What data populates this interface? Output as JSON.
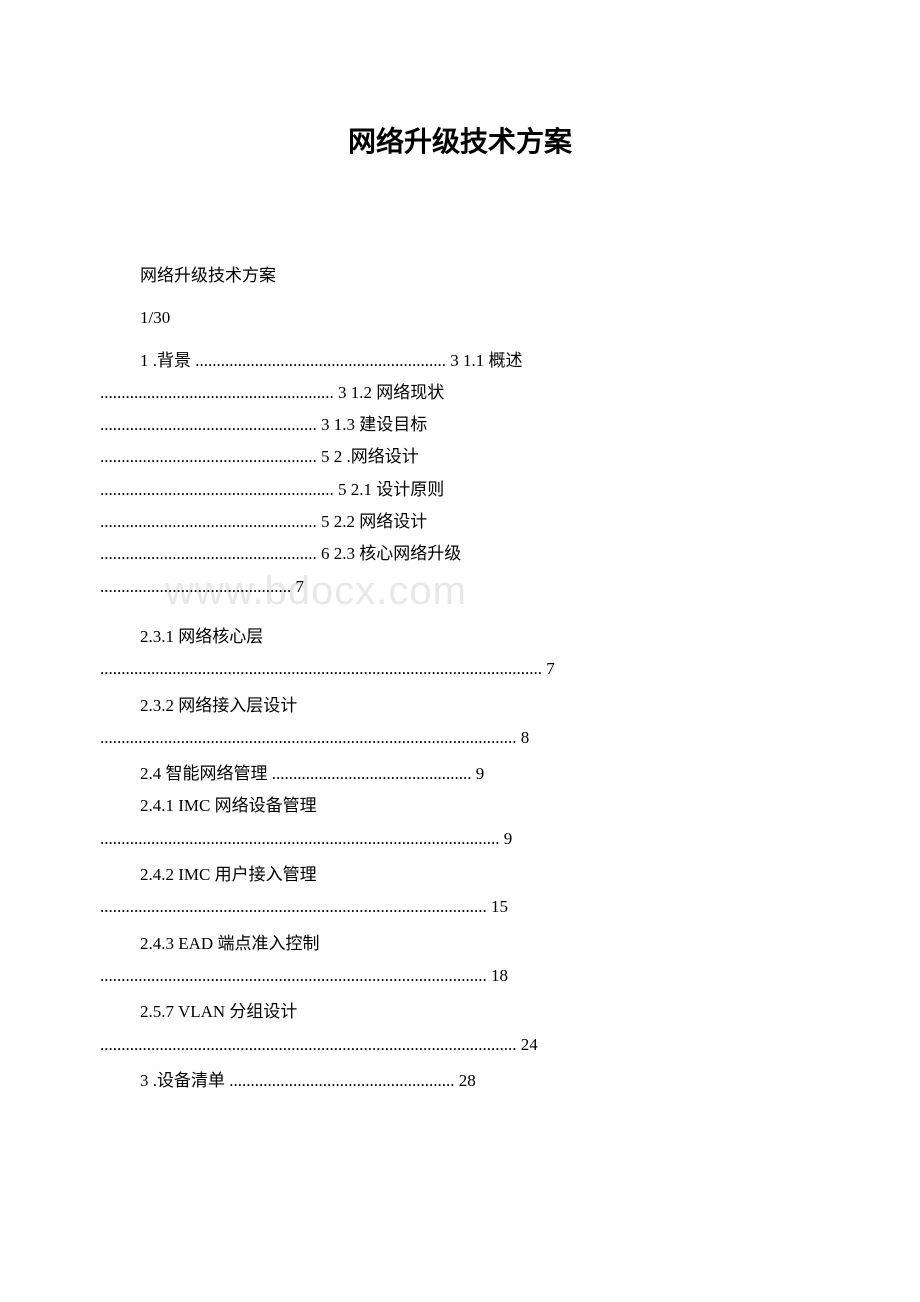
{
  "document": {
    "title": "网络升级技术方案",
    "subtitle": "网络升级技术方案",
    "page_indicator": "1/30",
    "watermark": "www.bdocx.com",
    "background_color": "#ffffff",
    "text_color": "#000000",
    "watermark_color": "#e8e8e8",
    "title_fontsize": 28,
    "body_fontsize": 17
  },
  "toc": {
    "block1": {
      "line1": "1 .背景 ........................................................... 3 1.1 概述",
      "line2": "....................................................... 3 1.2 网络现状",
      "line3": "................................................... 3 1.3 建设目标",
      "line4": "................................................... 5 2 .网络设计",
      "line5": "....................................................... 5 2.1 设计原则",
      "line6": "................................................... 5 2.2 网络设计",
      "line7": "................................................... 6 2.3 核心网络升级",
      "line8": "............................................. 7"
    },
    "entry_231_heading": "2.3.1 网络核心层",
    "entry_231_dots": "........................................................................................................ 7",
    "entry_232_heading": "2.3.2 网络接入层设计",
    "entry_232_dots": ".................................................................................................. 8",
    "entry_24": "2.4 智能网络管理 ............................................... 9",
    "entry_241_heading": "2.4.1 IMC 网络设备管理",
    "entry_241_dots": ".............................................................................................. 9",
    "entry_242_heading": "2.4.2 IMC 用户接入管理",
    "entry_242_dots": "........................................................................................... 15",
    "entry_243_heading": "2.4.3 EAD 端点准入控制",
    "entry_243_dots": "........................................................................................... 18",
    "entry_257_heading": "2.5.7 VLAN 分组设计",
    "entry_257_dots": ".................................................................................................. 24",
    "entry_3": "3 .设备清单 ..................................................... 28"
  }
}
